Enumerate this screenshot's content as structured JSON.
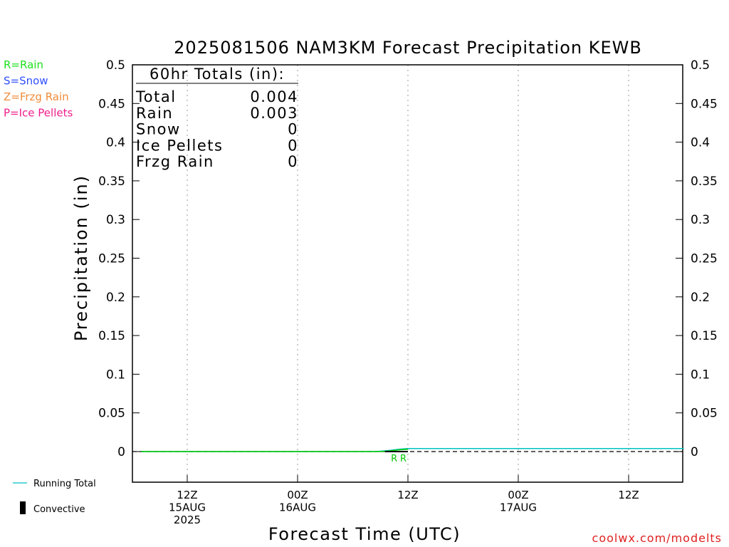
{
  "chart_data": {
    "type": "line",
    "title": "2025081506 NAM3KM Forecast Precipitation KEWB",
    "xlabel": "Forecast Time (UTC)",
    "ylabel": "Precipitation (in)",
    "ylim": [
      -0.04,
      0.5
    ],
    "yticks": [
      "0.5",
      "0.45",
      "0.4",
      "0.35",
      "0.3",
      "0.25",
      "0.2",
      "0.15",
      "0.1",
      "0.05",
      "0"
    ],
    "x_unit": "hours from 2025-08-15 06Z",
    "xlim": [
      0,
      60
    ],
    "xticks": [
      {
        "x": 6,
        "line1": "12Z",
        "line2": "15AUG",
        "line3": "2025"
      },
      {
        "x": 18,
        "line1": "00Z",
        "line2": "16AUG",
        "line3": ""
      },
      {
        "x": 30,
        "line1": "12Z",
        "line2": "",
        "line3": ""
      },
      {
        "x": 42,
        "line1": "00Z",
        "line2": "17AUG",
        "line3": ""
      },
      {
        "x": 54,
        "line1": "12Z",
        "line2": "",
        "line3": ""
      }
    ],
    "grid": "vertical dotted",
    "series": [
      {
        "name": "Running Total",
        "color": "#00c0c0",
        "x": [
          1,
          26,
          27,
          28,
          29,
          30,
          60
        ],
        "values": [
          0,
          0,
          0.0005,
          0.0015,
          0.003,
          0.004,
          0.004
        ]
      },
      {
        "name": "Rain",
        "color": "#00c800",
        "x": [
          1,
          27,
          28,
          29,
          30
        ],
        "values": [
          0,
          0,
          0.0008,
          0.0022,
          0.003
        ]
      }
    ],
    "precip_type_marks": [
      {
        "x": 28.5,
        "symbol": "R",
        "color": "#00c800"
      },
      {
        "x": 29.5,
        "symbol": "R",
        "color": "#00c800"
      }
    ],
    "convective": {
      "from": 27.5,
      "to": 30,
      "value": 0
    }
  },
  "type_legend": [
    {
      "text": "R=Rain",
      "color": "#1ee01e"
    },
    {
      "text": "S=Snow",
      "color": "#3050ff"
    },
    {
      "text": "Z=Frzg Rain",
      "color": "#f08c3c"
    },
    {
      "text": "P=Ice Pellets",
      "color": "#f01e8c"
    }
  ],
  "totals": {
    "header": "60hr Totals (in):",
    "rows": [
      {
        "label": "Total",
        "value": "0.004"
      },
      {
        "label": "Rain",
        "value": "0.003"
      },
      {
        "label": "Snow",
        "value": "0"
      },
      {
        "label": "Ice Pellets",
        "value": "0"
      },
      {
        "label": "Frzg Rain",
        "value": "0"
      }
    ]
  },
  "bottom_legend": {
    "running_total": "Running Total",
    "running_total_color": "#00c0c0",
    "convective": "Convective"
  },
  "credit": {
    "text": "coolwx.com/modelts",
    "color": "#e02020"
  }
}
